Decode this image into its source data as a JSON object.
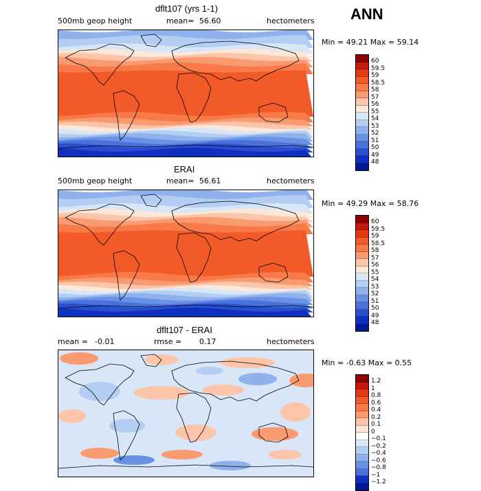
{
  "season": "ANN",
  "panels": [
    {
      "title": "dflt107 (yrs 1-1)",
      "variable": "500mb geop height",
      "mean_label": "mean=",
      "mean_value": "56.60",
      "units": "hectometers",
      "min_label": "Min =",
      "min_value": "49.21",
      "max_label": "Max =",
      "max_value": "59.14",
      "colorbar_levels": [
        "60",
        "59.5",
        "59",
        "58.5",
        "58",
        "57",
        "56",
        "55",
        "54",
        "53",
        "52",
        "51",
        "50",
        "49",
        "48"
      ],
      "colorbar_colors": [
        "#8b0000",
        "#c41a0a",
        "#e53a10",
        "#f25a28",
        "#f77a48",
        "#fa9a70",
        "#fcc4a8",
        "#fbe8d8",
        "#d8e6f8",
        "#b4cdf2",
        "#8fb2ec",
        "#6a92e4",
        "#4a70dc",
        "#2a4ed0",
        "#1030c0",
        "#001890"
      ],
      "map_style": "height"
    },
    {
      "title": "ERAI",
      "variable": "500mb geop height",
      "mean_label": "mean=",
      "mean_value": "56.61",
      "units": "hectometers",
      "min_label": "Min =",
      "min_value": "49.29",
      "max_label": "Max =",
      "max_value": "58.76",
      "colorbar_levels": [
        "60",
        "59.5",
        "59",
        "58.5",
        "58",
        "57",
        "56",
        "55",
        "54",
        "53",
        "52",
        "51",
        "50",
        "49",
        "48"
      ],
      "colorbar_colors": [
        "#8b0000",
        "#c41a0a",
        "#e53a10",
        "#f25a28",
        "#f77a48",
        "#fa9a70",
        "#fcc4a8",
        "#fbe8d8",
        "#d8e6f8",
        "#b4cdf2",
        "#8fb2ec",
        "#6a92e4",
        "#4a70dc",
        "#2a4ed0",
        "#1030c0",
        "#001890"
      ],
      "map_style": "height"
    },
    {
      "title": "dflt107 - ERAI",
      "mean_label": "mean =",
      "mean_value": "-0.01",
      "rmse_label": "rmse =",
      "rmse_value": "0.17",
      "units": "hectometers",
      "min_label": "Min =",
      "min_value": "-0.63",
      "max_label": "Max =",
      "max_value": "0.55",
      "colorbar_levels": [
        "1.2",
        "1",
        "0.8",
        "0.6",
        "0.4",
        "0.2",
        "0.1",
        "0",
        "-0.1",
        "-0.2",
        "-0.4",
        "-0.6",
        "-0.8",
        "-1",
        "-1.2"
      ],
      "colorbar_colors": [
        "#8b0000",
        "#c41a0a",
        "#e53a10",
        "#f25a28",
        "#f77a48",
        "#fa9a70",
        "#fcc4a8",
        "#fbe8d8",
        "#ffffff",
        "#d8e6f8",
        "#b4cdf2",
        "#8fb2ec",
        "#6a92e4",
        "#4a70dc",
        "#1030c0",
        "#001890"
      ],
      "map_style": "diff"
    }
  ]
}
